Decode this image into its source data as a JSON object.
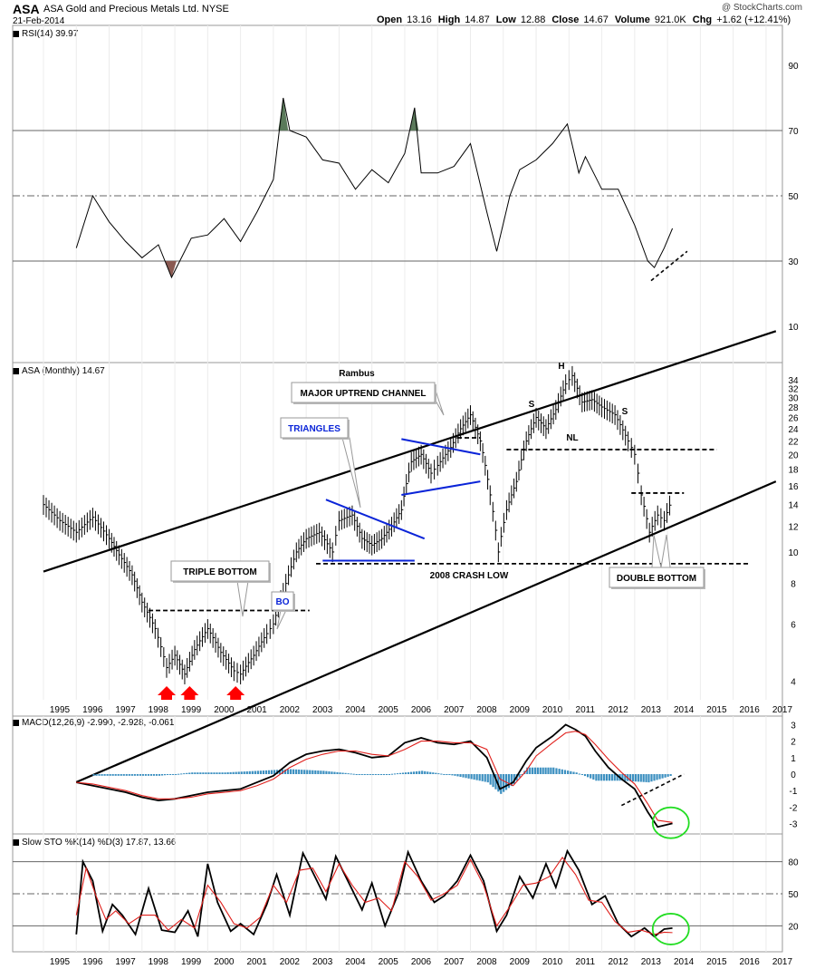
{
  "header": {
    "symbol": "ASA",
    "company": "ASA Gold and Precious Metals Ltd.",
    "exchange": "NYSE",
    "date": "21-Feb-2014",
    "source": "@ StockCharts.com",
    "quote": [
      {
        "label": "Open",
        "value": "13.16"
      },
      {
        "label": "High",
        "value": "14.87"
      },
      {
        "label": "Low",
        "value": "12.88"
      },
      {
        "label": "Close",
        "value": "14.67"
      },
      {
        "label": "Volume",
        "value": "921.0K"
      },
      {
        "label": "Chg",
        "value": "+1.62 (+12.41%)"
      }
    ]
  },
  "panels": {
    "rsi_label": "RSI(14) 39.97",
    "price_label": "ASA (Monthly) 14.67",
    "macd_label": "MACD(12,26,9) -2.990, -2.928, -0.061",
    "sto_label": "Slow STO %K(14) %D(3) 17.87, 13.66"
  },
  "colors": {
    "price": "#000000",
    "signal": "#e0201c",
    "histogram": "#3b8fc0",
    "rsi_overbought": "#5a7a5a",
    "rsi_oversold": "#8a5a52",
    "triangle_lines": "#0a24d8",
    "highlight_circle": "#22dd22",
    "arrow": "#ff0000"
  },
  "chart_data": [
    {
      "type": "line",
      "title": "RSI(14) 39.97",
      "ylim": [
        0,
        100
      ],
      "y_ticks": [
        10,
        30,
        50,
        70,
        90
      ],
      "reference_levels": [
        30,
        50,
        70
      ],
      "x": [
        1996.0,
        1996.5,
        1997.0,
        1997.5,
        1998.0,
        1998.5,
        1998.9,
        1999.5,
        2000.0,
        2000.5,
        2001.0,
        2001.5,
        2002.0,
        2002.3,
        2002.5,
        2003.0,
        2003.5,
        2004.0,
        2004.5,
        2005.0,
        2005.5,
        2006.0,
        2006.3,
        2006.5,
        2007.0,
        2007.5,
        2008.0,
        2008.5,
        2008.8,
        2009.2,
        2009.5,
        2010.0,
        2010.5,
        2010.95,
        2011.3,
        2011.5,
        2012.0,
        2012.5,
        2013.0,
        2013.4,
        2013.6,
        2013.9,
        2014.15
      ],
      "y": [
        34,
        50,
        42,
        36,
        31,
        35,
        25,
        37,
        38,
        43,
        36,
        45,
        55,
        80,
        70,
        68,
        61,
        60,
        52,
        58,
        54,
        63,
        77,
        57,
        57,
        59,
        66,
        45,
        33,
        50,
        58,
        61,
        66,
        72,
        57,
        62,
        52,
        52,
        41,
        30,
        28,
        34,
        40
      ],
      "annotations": [
        "dashed support line under RSI lows"
      ]
    },
    {
      "type": "line",
      "title": "ASA (Monthly) 14.67",
      "y_scale": "log",
      "ylim": [
        3.5,
        36
      ],
      "y_ticks": [
        4,
        6,
        8,
        10,
        12,
        14,
        16,
        18,
        20,
        22,
        24,
        26,
        28,
        30,
        32,
        34
      ],
      "x_ticks": [
        "1995",
        "1996",
        "1997",
        "1998",
        "1999",
        "2000",
        "2001",
        "2002",
        "2003",
        "2004",
        "2005",
        "2006",
        "2007",
        "2008",
        "2009",
        "2010",
        "2011",
        "2012",
        "2013",
        "2014",
        "2015",
        "2016",
        "2017"
      ],
      "x": [
        1995.0,
        1995.5,
        1996.0,
        1996.5,
        1997.0,
        1997.3,
        1997.7,
        1998.0,
        1998.4,
        1998.75,
        1999.0,
        1999.3,
        1999.6,
        2000.0,
        2000.4,
        2000.8,
        2001.0,
        2001.4,
        2001.8,
        2002.0,
        2002.3,
        2002.7,
        2003.0,
        2003.4,
        2003.8,
        2004.0,
        2004.4,
        2004.7,
        2005.0,
        2005.3,
        2005.6,
        2005.9,
        2006.2,
        2006.5,
        2006.8,
        2007.0,
        2007.4,
        2007.7,
        2008.0,
        2008.3,
        2008.6,
        2008.85,
        2009.1,
        2009.4,
        2009.7,
        2010.0,
        2010.3,
        2010.6,
        2010.9,
        2011.1,
        2011.4,
        2011.7,
        2012.0,
        2012.4,
        2012.8,
        2013.0,
        2013.2,
        2013.45,
        2013.7,
        2013.9,
        2014.15
      ],
      "y": [
        14,
        12.5,
        11.5,
        12.8,
        11.0,
        9.8,
        8.5,
        7.0,
        5.8,
        4.4,
        4.8,
        4.2,
        5.0,
        5.8,
        4.9,
        4.3,
        4.2,
        4.8,
        5.6,
        6.0,
        7.5,
        10.0,
        11.0,
        11.5,
        10.0,
        12.5,
        13.0,
        11.0,
        10.5,
        11.0,
        12.0,
        13.5,
        19.0,
        20.0,
        17.5,
        18.5,
        21.0,
        24.0,
        26.5,
        22.0,
        15.0,
        10.0,
        13.5,
        16.5,
        22.0,
        26.0,
        24.0,
        27.5,
        33.0,
        35.0,
        29.0,
        29.5,
        28.0,
        26.5,
        22.0,
        20.0,
        15.0,
        11.5,
        13.0,
        12.5,
        14.67
      ],
      "lines": [
        {
          "name": "upper channel",
          "points": [
            [
              1995.0,
              8.7
            ],
            [
              2017.3,
              48
            ]
          ]
        },
        {
          "name": "lower channel",
          "points": [
            [
              1996.0,
              1.95
            ],
            [
              2017.3,
              16.5
            ]
          ]
        },
        {
          "name": "upper triangle 1",
          "points": [
            [
              2003.6,
              14.5
            ],
            [
              2006.6,
              11.0
            ]
          ]
        },
        {
          "name": "lower triangle 1",
          "points": [
            [
              2003.5,
              9.4
            ],
            [
              2006.3,
              9.4
            ]
          ]
        },
        {
          "name": "upper triangle 2",
          "points": [
            [
              2005.9,
              22.3
            ],
            [
              2008.3,
              20.0
            ]
          ]
        },
        {
          "name": "lower triangle 2",
          "points": [
            [
              2005.9,
              15.0
            ],
            [
              2008.3,
              16.5
            ]
          ]
        }
      ],
      "levels": [
        {
          "value": 6.6,
          "from": 1998.2,
          "to": 2003.1,
          "style": "dashed"
        },
        {
          "value": 9.2,
          "from": 2003.3,
          "to": 2016.5,
          "style": "dashed"
        },
        {
          "value": 22.5,
          "from": 2007.6,
          "to": 2008.3,
          "style": "dashed"
        },
        {
          "value": 20.7,
          "from": 2009.1,
          "to": 2015.5,
          "style": "dashed"
        },
        {
          "value": 15.2,
          "from": 2012.9,
          "to": 2014.5,
          "style": "dashed"
        }
      ],
      "text_annotations": [
        "Rambus",
        "MAJOR UPTREND CHANNEL",
        "TRIANGLES",
        "TRIPLE BOTTOM",
        "BO",
        "2008 CRASH LOW",
        "DOUBLE BOTTOM",
        "S",
        "H",
        "S",
        "NL"
      ],
      "markers": [
        {
          "type": "up-arrow",
          "x": 1998.75
        },
        {
          "type": "up-arrow",
          "x": 1999.45
        },
        {
          "type": "up-arrow",
          "x": 2000.85
        }
      ]
    },
    {
      "type": "line",
      "title": "MACD(12,26,9) -2.990, -2.928, -0.061",
      "ylim": [
        -3.6,
        3.4
      ],
      "y_ticks": [
        -3,
        -2,
        -1,
        0,
        1,
        2,
        3
      ],
      "series": [
        {
          "name": "MACD",
          "x": [
            1996.0,
            1996.5,
            1997.0,
            1997.5,
            1998.0,
            1998.5,
            1999.0,
            1999.5,
            2000.0,
            2000.5,
            2001.0,
            2001.5,
            2002.0,
            2002.5,
            2003.0,
            2003.5,
            2004.0,
            2004.5,
            2005.0,
            2005.5,
            2006.0,
            2006.5,
            2007.0,
            2007.5,
            2008.0,
            2008.5,
            2008.9,
            2009.3,
            2009.7,
            2010.0,
            2010.5,
            2010.9,
            2011.2,
            2011.5,
            2011.8,
            2012.2,
            2012.6,
            2013.0,
            2013.4,
            2013.7,
            2014.15
          ],
          "y": [
            -0.5,
            -0.7,
            -0.9,
            -1.1,
            -1.4,
            -1.6,
            -1.5,
            -1.3,
            -1.1,
            -1.0,
            -0.9,
            -0.5,
            -0.1,
            0.7,
            1.2,
            1.4,
            1.5,
            1.3,
            1.0,
            1.1,
            1.9,
            2.2,
            1.9,
            1.8,
            2.0,
            1.0,
            -0.9,
            -0.5,
            0.8,
            1.6,
            2.3,
            3.0,
            2.7,
            2.3,
            1.4,
            0.4,
            -0.3,
            -0.9,
            -2.3,
            -3.2,
            -2.99
          ]
        },
        {
          "name": "Signal",
          "x": [
            1996.0,
            1996.5,
            1997.0,
            1997.5,
            1998.0,
            1998.5,
            1999.0,
            1999.5,
            2000.0,
            2000.5,
            2001.0,
            2001.5,
            2002.0,
            2002.5,
            2003.0,
            2003.5,
            2004.0,
            2004.5,
            2005.0,
            2005.5,
            2006.0,
            2006.5,
            2007.0,
            2007.5,
            2008.0,
            2008.5,
            2008.9,
            2009.3,
            2009.7,
            2010.0,
            2010.5,
            2010.9,
            2011.2,
            2011.5,
            2011.8,
            2012.2,
            2012.6,
            2013.0,
            2013.4,
            2013.7,
            2014.15
          ],
          "y": [
            -0.5,
            -0.6,
            -0.8,
            -1.0,
            -1.3,
            -1.5,
            -1.5,
            -1.4,
            -1.2,
            -1.1,
            -1.0,
            -0.7,
            -0.3,
            0.4,
            0.9,
            1.2,
            1.4,
            1.4,
            1.2,
            1.1,
            1.5,
            2.0,
            2.0,
            1.9,
            1.9,
            1.5,
            -0.3,
            -0.7,
            0.2,
            1.1,
            1.9,
            2.5,
            2.6,
            2.4,
            1.8,
            0.9,
            0.1,
            -0.6,
            -1.8,
            -2.8,
            -2.928
          ]
        }
      ],
      "histogram": {
        "x": [
          1996.5,
          1997.5,
          1998.5,
          1999.5,
          2000.5,
          2001.5,
          2002.5,
          2003.5,
          2004.5,
          2005.5,
          2006.5,
          2007.5,
          2008.5,
          2008.9,
          2009.3,
          2009.7,
          2010.5,
          2011.2,
          2011.8,
          2012.6,
          2013.4,
          2014.15
        ],
        "y": [
          -0.1,
          -0.1,
          -0.1,
          0.1,
          0.1,
          0.2,
          0.3,
          0.2,
          0.0,
          0.0,
          0.2,
          -0.1,
          -0.5,
          -1.2,
          -0.6,
          0.4,
          0.4,
          0.1,
          -0.4,
          -0.4,
          -0.5,
          -0.061
        ]
      },
      "annotations": [
        "dashed line on histogram",
        "green highlight circle"
      ]
    },
    {
      "type": "line",
      "title": "Slow STO %K(14) %D(3) 17.87, 13.66",
      "ylim": [
        0,
        100
      ],
      "y_ticks": [
        20,
        50,
        80
      ],
      "x_ticks": [
        "1995",
        "1996",
        "1997",
        "1998",
        "1999",
        "2000",
        "2001",
        "2002",
        "2003",
        "2004",
        "2005",
        "2006",
        "2007",
        "2008",
        "2009",
        "2010",
        "2011",
        "2012",
        "2013",
        "2014",
        "2015",
        "2016",
        "2017"
      ],
      "series": [
        {
          "name": "%K",
          "x": [
            1996.0,
            1996.2,
            1996.5,
            1996.8,
            1997.1,
            1997.4,
            1997.8,
            1998.2,
            1998.6,
            1999.0,
            1999.4,
            1999.7,
            2000.0,
            2000.3,
            2000.7,
            2001.0,
            2001.4,
            2001.8,
            2002.1,
            2002.5,
            2002.9,
            2003.2,
            2003.6,
            2003.9,
            2004.3,
            2004.7,
            2005.0,
            2005.4,
            2005.8,
            2006.1,
            2006.5,
            2006.9,
            2007.2,
            2007.6,
            2008.0,
            2008.4,
            2008.8,
            2009.1,
            2009.5,
            2009.9,
            2010.3,
            2010.6,
            2010.95,
            2011.3,
            2011.7,
            2012.1,
            2012.5,
            2012.9,
            2013.3,
            2013.6,
            2013.9,
            2014.15
          ],
          "y": [
            12,
            80,
            62,
            15,
            40,
            30,
            12,
            55,
            16,
            14,
            34,
            10,
            78,
            42,
            15,
            22,
            12,
            40,
            68,
            30,
            88,
            70,
            45,
            85,
            60,
            35,
            60,
            20,
            50,
            89,
            62,
            42,
            48,
            62,
            86,
            62,
            15,
            30,
            66,
            46,
            78,
            56,
            90,
            72,
            40,
            48,
            22,
            10,
            18,
            10,
            17,
            17.87
          ]
        },
        {
          "name": "%D",
          "x": [
            1996.0,
            1996.3,
            1996.6,
            1996.9,
            1997.2,
            1997.6,
            1998.0,
            1998.4,
            1998.8,
            1999.2,
            1999.6,
            2000.0,
            2000.4,
            2000.8,
            2001.2,
            2001.6,
            2002.0,
            2002.4,
            2002.8,
            2003.2,
            2003.6,
            2004.0,
            2004.4,
            2004.8,
            2005.2,
            2005.6,
            2006.0,
            2006.4,
            2006.8,
            2007.2,
            2007.6,
            2008.0,
            2008.4,
            2008.8,
            2009.2,
            2009.6,
            2010.0,
            2010.4,
            2010.8,
            2011.2,
            2011.6,
            2012.0,
            2012.4,
            2012.8,
            2013.2,
            2013.6,
            2013.9,
            2014.15
          ],
          "y": [
            30,
            74,
            48,
            26,
            34,
            22,
            30,
            30,
            16,
            26,
            18,
            58,
            42,
            22,
            18,
            28,
            58,
            42,
            72,
            74,
            52,
            78,
            58,
            42,
            46,
            34,
            80,
            66,
            44,
            50,
            58,
            82,
            58,
            20,
            38,
            58,
            60,
            66,
            84,
            68,
            44,
            42,
            24,
            14,
            16,
            12,
            14,
            13.66
          ]
        }
      ],
      "annotations": [
        "green highlight circle"
      ]
    }
  ]
}
